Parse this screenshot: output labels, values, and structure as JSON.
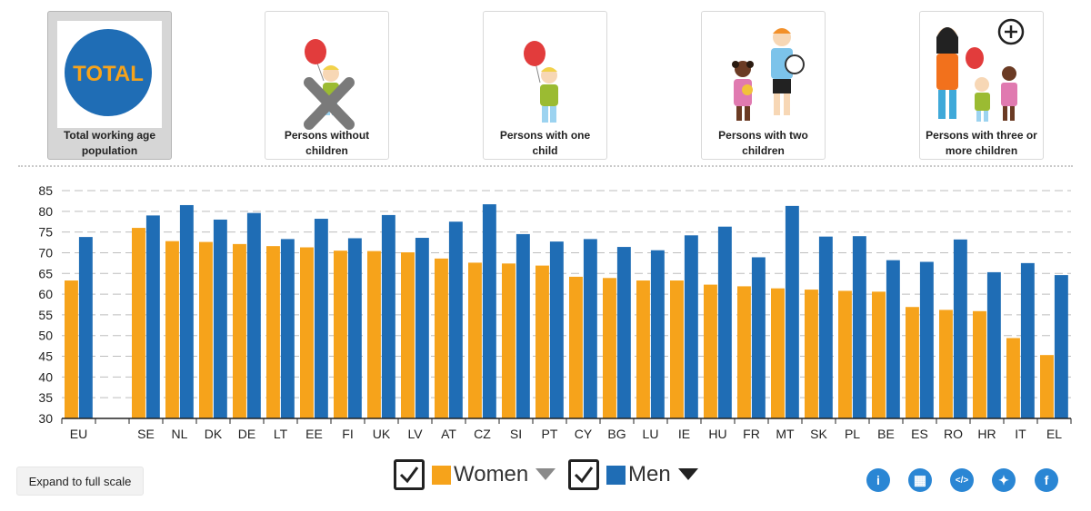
{
  "filters": [
    {
      "badge": "TOTAL",
      "label": "Total working age population",
      "active": true
    },
    {
      "label": "Persons without children",
      "active": false
    },
    {
      "label": "Persons with one child",
      "active": false
    },
    {
      "label": "Persons with two children",
      "active": false
    },
    {
      "label": "Persons with three or more children",
      "active": false
    }
  ],
  "colors": {
    "women": "#f6a31b",
    "men": "#1f6db5",
    "filter_active_bg": "#d6d6d6",
    "icon_blue": "#2a86d4"
  },
  "chart_data": {
    "type": "bar",
    "categories": [
      "EU",
      "",
      "SE",
      "NL",
      "DK",
      "DE",
      "LT",
      "EE",
      "FI",
      "UK",
      "LV",
      "AT",
      "CZ",
      "SI",
      "PT",
      "CY",
      "BG",
      "LU",
      "IE",
      "HU",
      "FR",
      "MT",
      "SK",
      "PL",
      "BE",
      "ES",
      "RO",
      "HR",
      "IT",
      "EL"
    ],
    "series": [
      {
        "name": "Women",
        "values": [
          63.3,
          null,
          76.0,
          72.8,
          72.6,
          72.1,
          71.6,
          71.3,
          70.5,
          70.4,
          70.1,
          68.6,
          67.6,
          67.4,
          66.9,
          64.2,
          63.9,
          63.3,
          63.3,
          62.3,
          61.9,
          61.4,
          61.1,
          60.8,
          60.6,
          56.9,
          56.2,
          55.9,
          49.4,
          45.3
        ]
      },
      {
        "name": "Men",
        "values": [
          73.8,
          null,
          79.0,
          81.5,
          78.0,
          79.6,
          73.3,
          78.2,
          73.5,
          79.1,
          73.6,
          77.5,
          81.7,
          74.5,
          72.7,
          73.3,
          71.4,
          70.6,
          74.2,
          76.3,
          68.9,
          81.3,
          73.9,
          74.0,
          68.2,
          67.8,
          73.2,
          65.3,
          67.5,
          64.6
        ]
      }
    ],
    "ylim": [
      30,
      85
    ],
    "yticks": [
      30,
      35,
      40,
      45,
      50,
      55,
      60,
      65,
      70,
      75,
      80,
      85
    ],
    "grid": true
  },
  "legend": {
    "women_label": "Women",
    "men_label": "Men"
  },
  "controls": {
    "expand_label": "Expand to full scale"
  },
  "share_icons": [
    {
      "name": "info-icon",
      "glyph": "i"
    },
    {
      "name": "table-icon",
      "glyph": "▦"
    },
    {
      "name": "embed-icon",
      "glyph": "</>"
    },
    {
      "name": "twitter-icon",
      "glyph": "✦"
    },
    {
      "name": "facebook-icon",
      "glyph": "f"
    }
  ]
}
